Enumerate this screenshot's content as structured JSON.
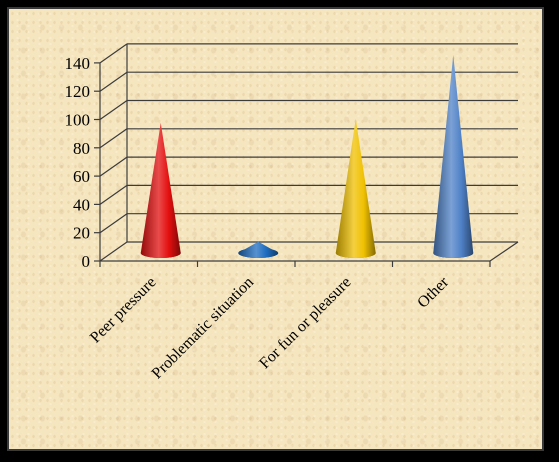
{
  "chart_data": {
    "type": "bar",
    "bar_shape": "cone",
    "categories": [
      "Peer pressure",
      "Problematic situation",
      "For fun or pleasure",
      "Other"
    ],
    "values": [
      92,
      8,
      95,
      140
    ],
    "colors": [
      "#e30f0f",
      "#1e6cc0",
      "#f0c000",
      "#4f81c7"
    ],
    "yticks": [
      0,
      20,
      40,
      60,
      80,
      100,
      120,
      140
    ],
    "ylim": [
      0,
      140
    ],
    "grid": true,
    "legend": "none",
    "title": "",
    "xlabel": "",
    "ylabel": ""
  }
}
